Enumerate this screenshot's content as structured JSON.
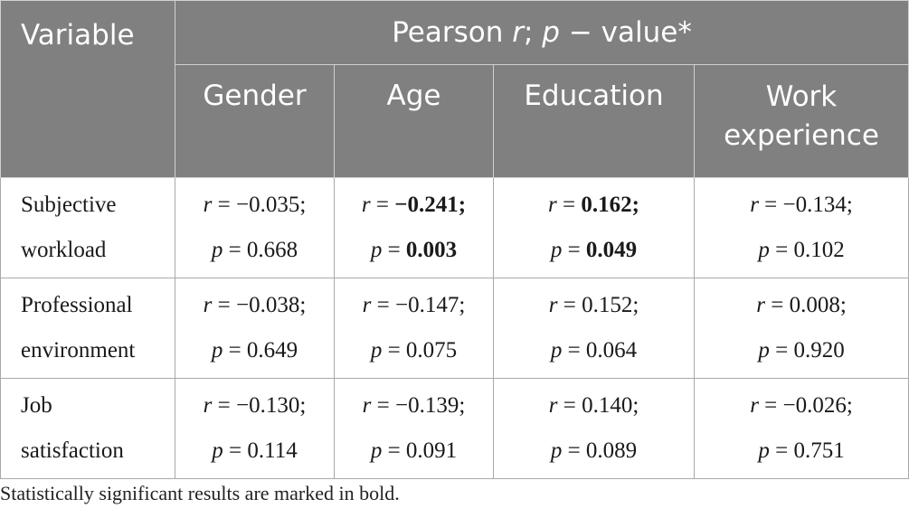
{
  "header": {
    "variable": "Variable",
    "pearson_prefix": "Pearson ",
    "pearson_r": "r",
    "pearson_sep": "; ",
    "pearson_p": "p",
    "pearson_suffix": " − value*",
    "columns": [
      "Gender",
      "Age",
      "Education",
      "Work experience"
    ]
  },
  "rows": [
    {
      "label_line1": "Subjective",
      "label_line2": "workload",
      "cells": [
        {
          "r": "−0.035;",
          "p": "0.668",
          "r_bold": false,
          "p_bold": false
        },
        {
          "r": "−0.241;",
          "p": "0.003",
          "r_bold": true,
          "p_bold": true
        },
        {
          "r": "0.162;",
          "p": "0.049",
          "r_bold": true,
          "p_bold": true
        },
        {
          "r": "−0.134;",
          "p": "0.102",
          "r_bold": false,
          "p_bold": false
        }
      ]
    },
    {
      "label_line1": "Professional",
      "label_line2": "environment",
      "cells": [
        {
          "r": "−0.038;",
          "p": "0.649",
          "r_bold": false,
          "p_bold": false
        },
        {
          "r": "−0.147;",
          "p": "0.075",
          "r_bold": false,
          "p_bold": false
        },
        {
          "r": "0.152;",
          "p": "0.064",
          "r_bold": false,
          "p_bold": false
        },
        {
          "r": "0.008;",
          "p": "0.920",
          "r_bold": false,
          "p_bold": false
        }
      ]
    },
    {
      "label_line1": "Job",
      "label_line2": "satisfaction",
      "cells": [
        {
          "r": "−0.130;",
          "p": "0.114",
          "r_bold": false,
          "p_bold": false
        },
        {
          "r": "−0.139;",
          "p": "0.091",
          "r_bold": false,
          "p_bold": false
        },
        {
          "r": "0.140;",
          "p": "0.089",
          "r_bold": false,
          "p_bold": false
        },
        {
          "r": "−0.026;",
          "p": "0.751",
          "r_bold": false,
          "p_bold": false
        }
      ]
    }
  ],
  "cell_text": {
    "r_symbol": "r",
    "p_symbol": "p",
    "equals": " = "
  },
  "footnote": "Statistically significant results are marked in bold.",
  "colors": {
    "header_bg": "#808080",
    "header_text": "#ffffff"
  }
}
